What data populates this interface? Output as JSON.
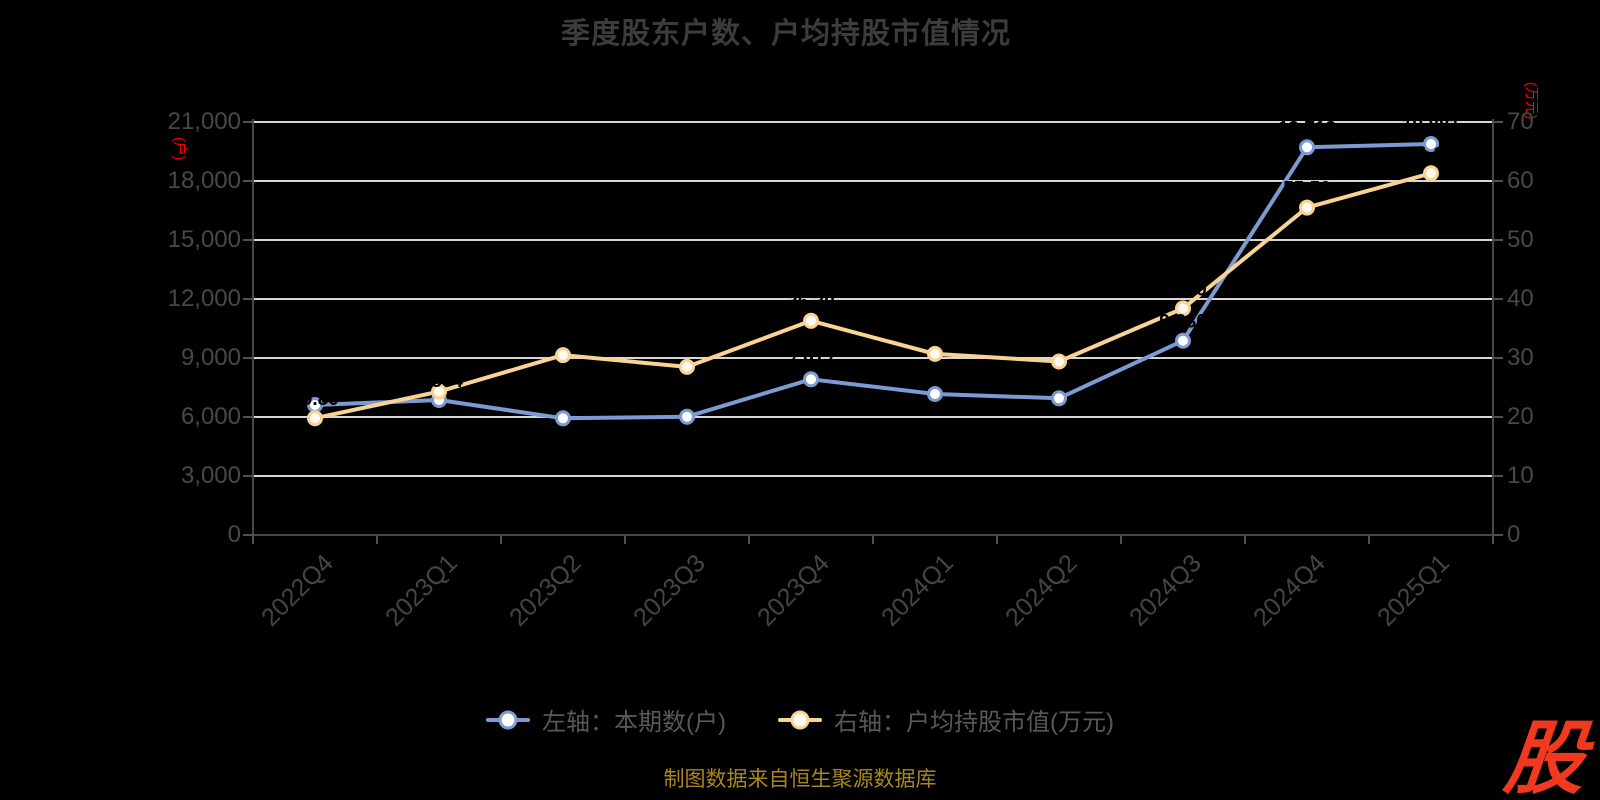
{
  "page": {
    "background": "#000000"
  },
  "chart_data": {
    "type": "line",
    "title": "季度股东户数、户均持股市值情况",
    "categories": [
      "2022Q4",
      "2023Q1",
      "2023Q2",
      "2023Q3",
      "2023Q4",
      "2024Q1",
      "2024Q2",
      "2024Q3",
      "2024Q4",
      "2025Q1"
    ],
    "series": [
      {
        "name": "左轴：本期数(户)",
        "yaxis": "left",
        "color": "#7b9bd2",
        "marker_fill": "#ffffff",
        "label_format": "thousands",
        "values": [
          6610,
          6864,
          5934,
          6015,
          7917,
          7169,
          6951,
          9880,
          19713,
          19881
        ]
      },
      {
        "name": "右轴：户均持股市值(万元)",
        "yaxis": "right",
        "color": "#f8d393",
        "marker_fill": "#fffaf0",
        "label_format": "fixed2",
        "values": [
          19.8,
          24.3,
          30.5,
          28.5,
          36.3,
          30.7,
          29.4,
          38.4,
          55.5,
          61.3
        ]
      }
    ],
    "axes": {
      "left": {
        "unit": "(户)",
        "unit_color": "#ff0000",
        "min": 0,
        "max": 21000,
        "tick_labels": [
          "21,000",
          "18,000",
          "15,000",
          "12,000",
          "9,000",
          "6,000",
          "3,000",
          "0"
        ]
      },
      "right": {
        "unit": "(万元)",
        "unit_color": "#ff0000",
        "min": 0,
        "max": 70,
        "tick_labels": [
          "70",
          "60",
          "50",
          "40",
          "30",
          "20",
          "10",
          "0"
        ]
      }
    },
    "grid": true,
    "legend_position": "bottom",
    "data_label_color": "#000000"
  },
  "footer": {
    "source_text": "制图数据来自恒生聚源数据库",
    "color": "#a8861f"
  },
  "logo": {
    "text": "股",
    "color": "#f0391e"
  }
}
